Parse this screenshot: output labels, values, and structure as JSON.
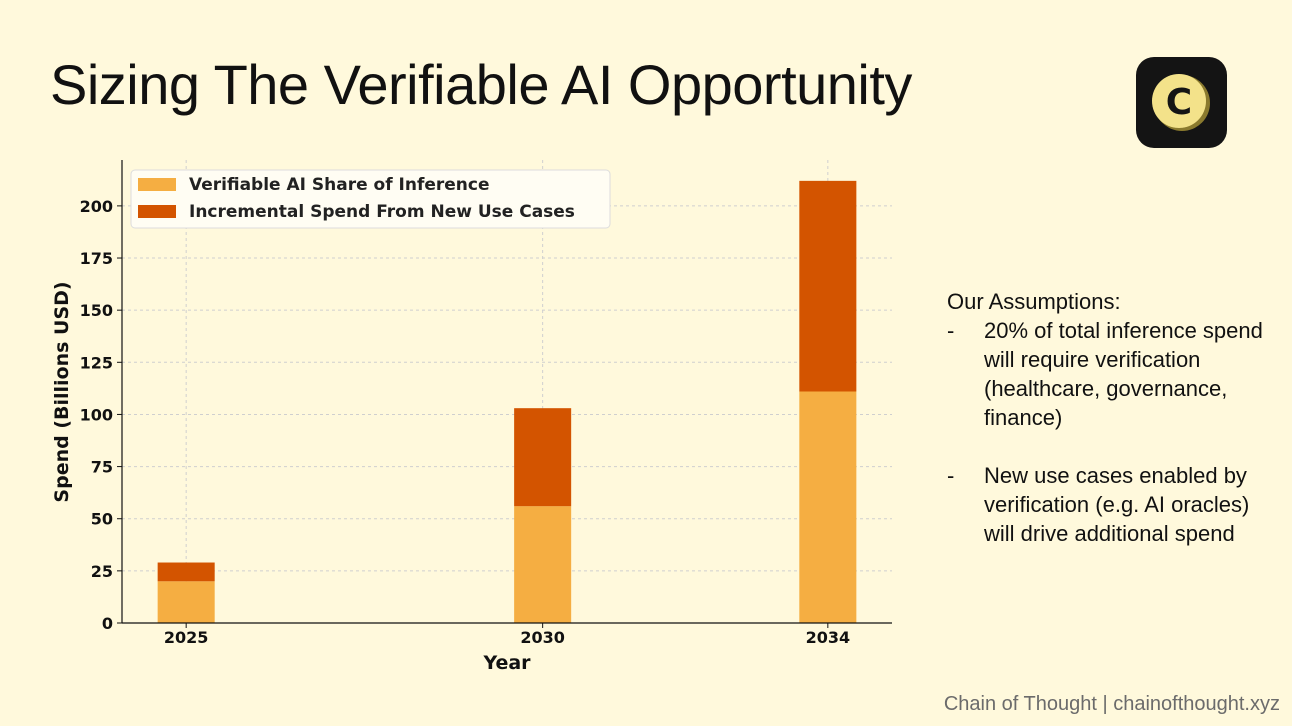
{
  "title": "Sizing The Verifiable AI Opportunity",
  "logo": {
    "letter": "C",
    "icon": "chain-of-thought-logo-icon"
  },
  "assumptions": {
    "heading": "Our Assumptions:",
    "items": [
      "20% of total inference spend will require verification (healthcare, governance, finance)",
      "New use cases enabled by verification (e.g. AI oracles) will drive additional spend"
    ]
  },
  "footer": "Chain of Thought | chainofthought.xyz",
  "chart_data": {
    "type": "bar",
    "stacked": true,
    "x_categorical_positions": true,
    "categories": [
      "2025",
      "2030",
      "2034"
    ],
    "x": [
      2025,
      2030,
      2034
    ],
    "xlim": [
      2024.1,
      2034.9
    ],
    "series": [
      {
        "name": "Verifiable AI Share of Inference",
        "values": [
          20,
          56,
          111
        ],
        "color": "#f5ae42"
      },
      {
        "name": "Incremental Spend From New Use Cases",
        "values": [
          9,
          47,
          101
        ],
        "color": "#d35400"
      }
    ],
    "xlabel": "Year",
    "ylabel": "Spend (Billions USD)",
    "ylim": [
      0,
      222
    ],
    "yticks": [
      0,
      25,
      50,
      75,
      100,
      125,
      150,
      175,
      200
    ],
    "xticks": [
      2025,
      2030,
      2034
    ],
    "grid": true,
    "legend": "top-left"
  }
}
